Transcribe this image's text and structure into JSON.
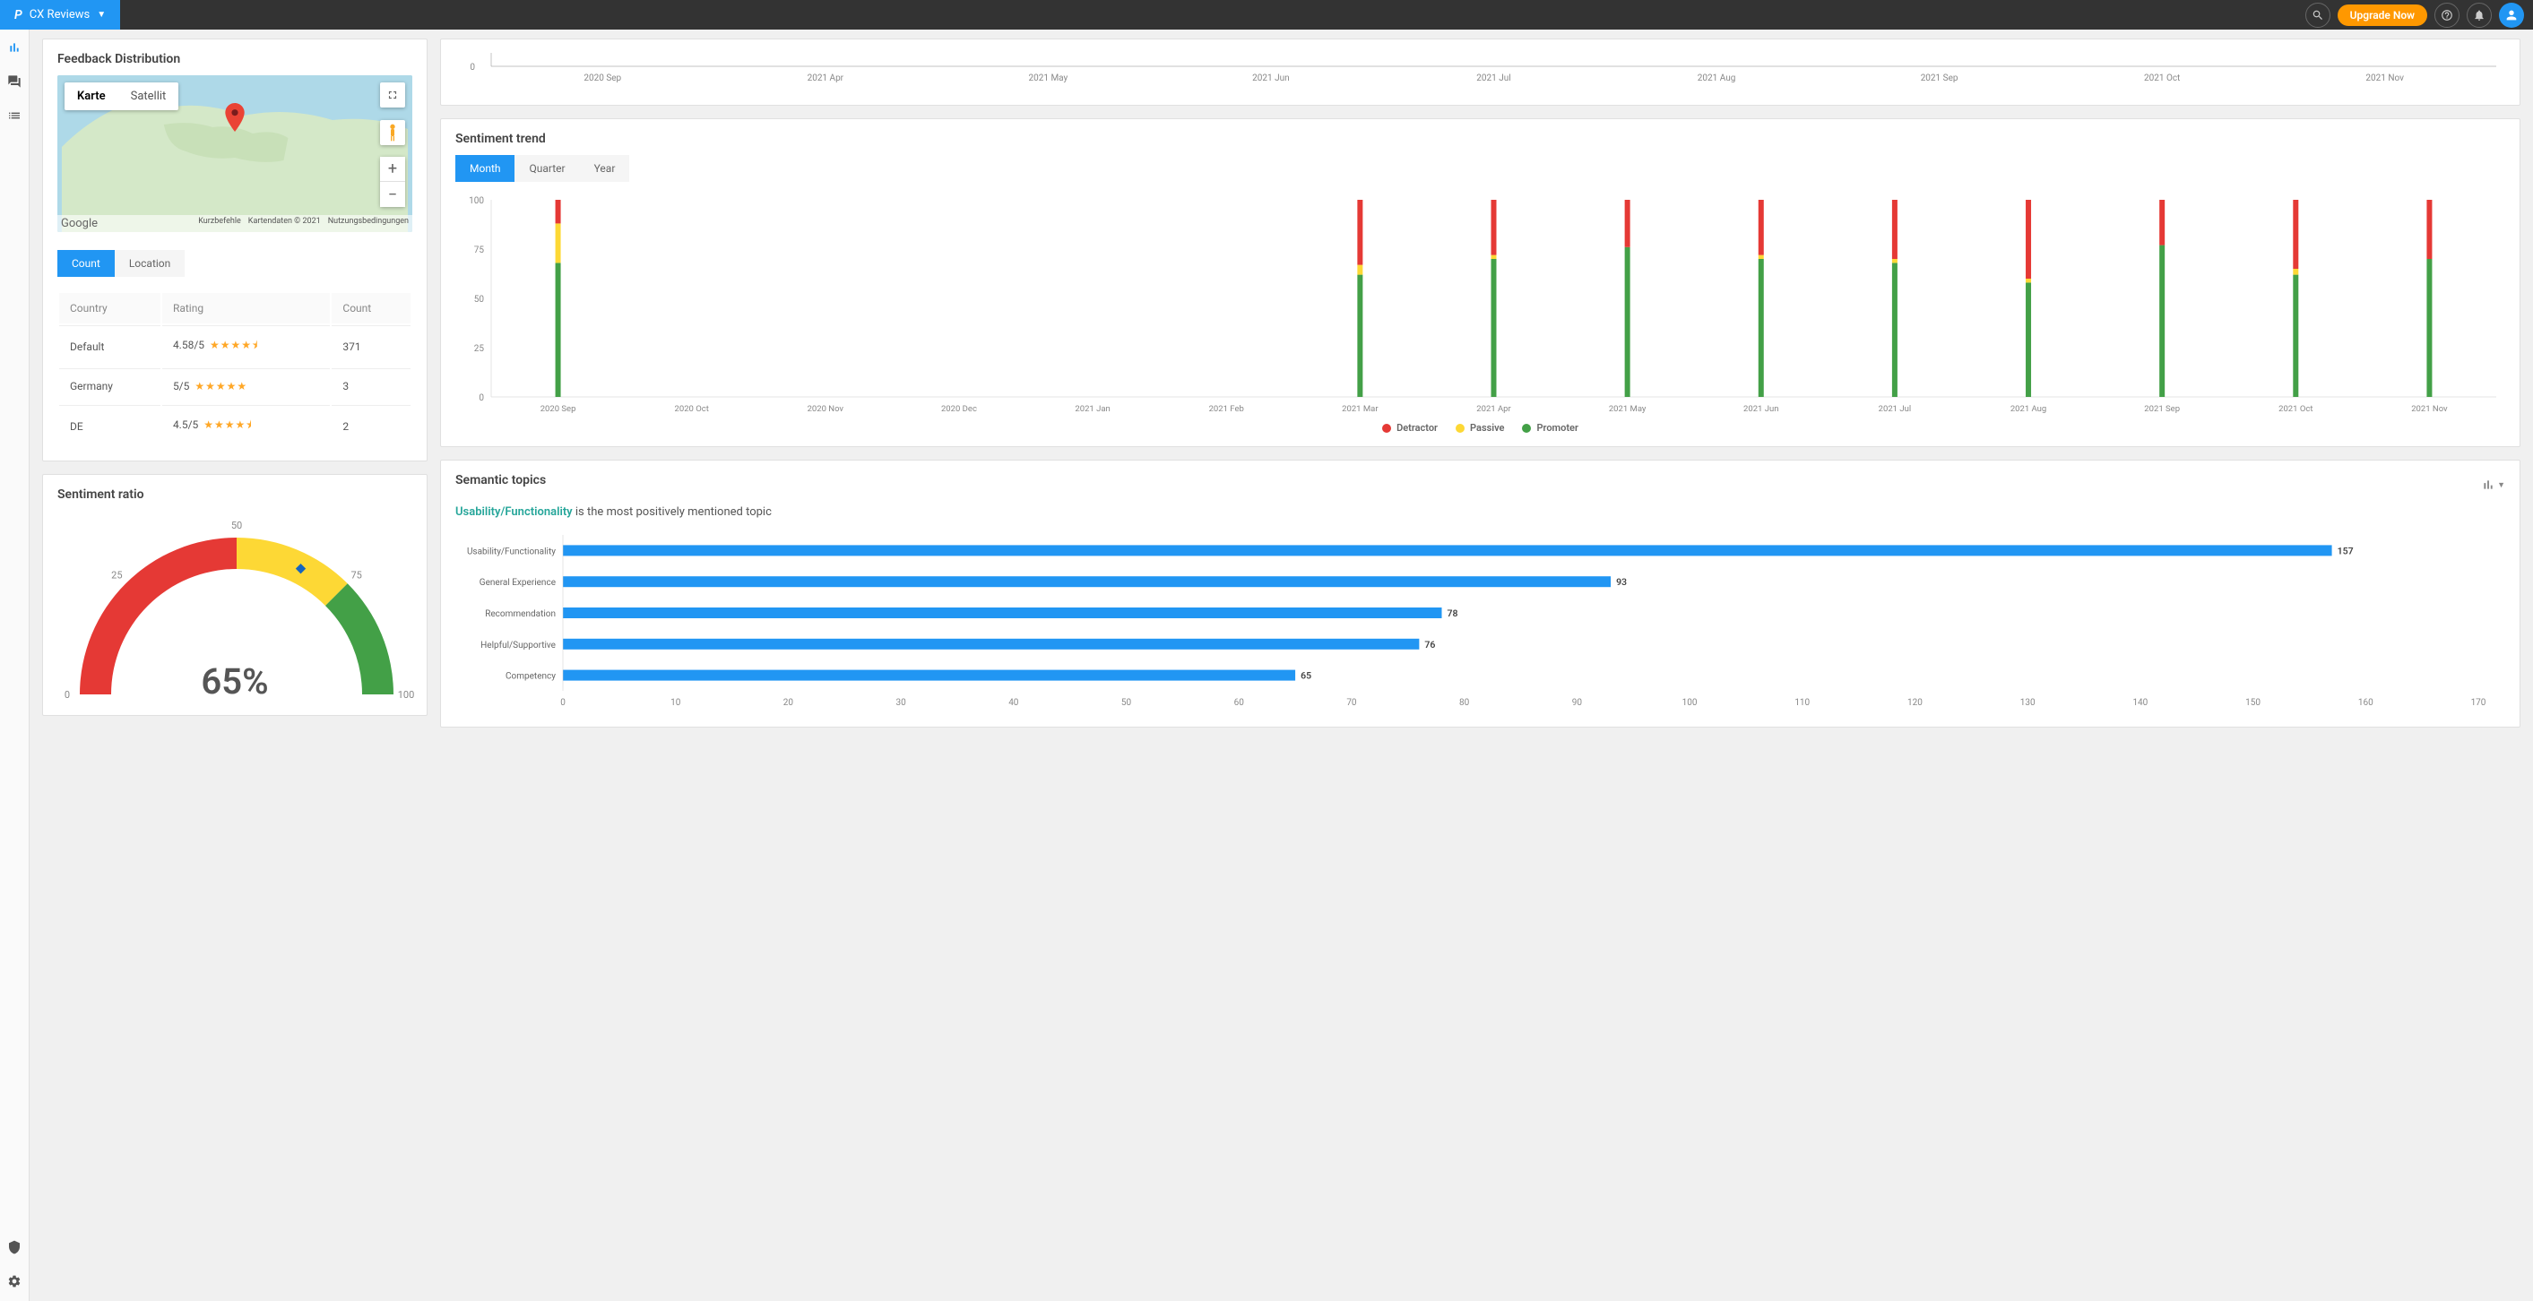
{
  "header": {
    "brand_short": "P",
    "app_name": "CX Reviews",
    "upgrade_label": "Upgrade Now"
  },
  "colors": {
    "primary": "#2196f3",
    "detractor": "#e53935",
    "passive": "#fdd835",
    "promoter": "#43a047",
    "bar": "#2196f3",
    "star": "#ffa726"
  },
  "feedback_distribution": {
    "title": "Feedback Distribution",
    "map_tabs": {
      "karte": "Karte",
      "satellit": "Satellit"
    },
    "map_attrib": {
      "logo": "Google",
      "shortcuts": "Kurzbefehle",
      "data": "Kartendaten © 2021",
      "terms": "Nutzungsbedingungen"
    },
    "toggle": {
      "count": "Count",
      "location": "Location"
    },
    "columns": {
      "country": "Country",
      "rating": "Rating",
      "count": "Count"
    },
    "rows": [
      {
        "country": "Default",
        "rating": "4.58/5",
        "stars": 4.5,
        "count": "371"
      },
      {
        "country": "Germany",
        "rating": "5/5",
        "stars": 5,
        "count": "3"
      },
      {
        "country": "DE",
        "rating": "4.5/5",
        "stars": 4.5,
        "count": "2"
      }
    ]
  },
  "top_line_chart": {
    "y_label": "0",
    "x_labels": [
      "2020 Sep",
      "2021 Apr",
      "2021 May",
      "2021 Jun",
      "2021 Jul",
      "2021 Aug",
      "2021 Sep",
      "2021 Oct",
      "2021 Nov"
    ]
  },
  "sentiment_trend": {
    "title": "Sentiment trend",
    "tabs": {
      "month": "Month",
      "quarter": "Quarter",
      "year": "Year"
    },
    "y_max": 100,
    "y_ticks": [
      0,
      25,
      50,
      75,
      100
    ],
    "x_labels": [
      "2020 Sep",
      "2020 Oct",
      "2020 Nov",
      "2020 Dec",
      "2021 Jan",
      "2021 Feb",
      "2021 Mar",
      "2021 Apr",
      "2021 May",
      "2021 Jun",
      "2021 Jul",
      "2021 Aug",
      "2021 Sep",
      "2021 Oct",
      "2021 Nov"
    ],
    "series": [
      {
        "promoter": 68,
        "passive": 20,
        "detractor": 12
      },
      null,
      null,
      null,
      null,
      null,
      {
        "promoter": 62,
        "passive": 5,
        "detractor": 33
      },
      {
        "promoter": 70,
        "passive": 2,
        "detractor": 28
      },
      {
        "promoter": 76,
        "passive": 0,
        "detractor": 24
      },
      {
        "promoter": 70,
        "passive": 2,
        "detractor": 28
      },
      {
        "promoter": 68,
        "passive": 2,
        "detractor": 30
      },
      {
        "promoter": 58,
        "passive": 2,
        "detractor": 40
      },
      {
        "promoter": 77,
        "passive": 0,
        "detractor": 23
      },
      {
        "promoter": 62,
        "passive": 3,
        "detractor": 35
      },
      {
        "promoter": 70,
        "passive": 0,
        "detractor": 30
      }
    ],
    "legend": {
      "detractor": "Detractor",
      "passive": "Passive",
      "promoter": "Promoter"
    }
  },
  "sentiment_ratio": {
    "title": "Sentiment ratio",
    "value": 65,
    "value_label": "65%",
    "scale": {
      "min": "0",
      "q1": "25",
      "mid": "50",
      "q3": "75",
      "max": "100"
    },
    "segments": [
      {
        "from": 0,
        "to": 50,
        "color": "#e53935"
      },
      {
        "from": 50,
        "to": 75,
        "color": "#fdd835"
      },
      {
        "from": 75,
        "to": 100,
        "color": "#43a047"
      }
    ]
  },
  "semantic_topics": {
    "title": "Semantic topics",
    "highlight_topic": "Usability/Functionality",
    "sentence_rest": " is the most positively mentioned topic",
    "x_max": 170,
    "x_tick_step": 10,
    "bar_color": "#2196f3",
    "topics": [
      {
        "label": "Usability/Functionality",
        "value": 157
      },
      {
        "label": "General Experience",
        "value": 93
      },
      {
        "label": "Recommendation",
        "value": 78
      },
      {
        "label": "Helpful/Supportive",
        "value": 76
      },
      {
        "label": "Competency",
        "value": 65
      }
    ]
  }
}
